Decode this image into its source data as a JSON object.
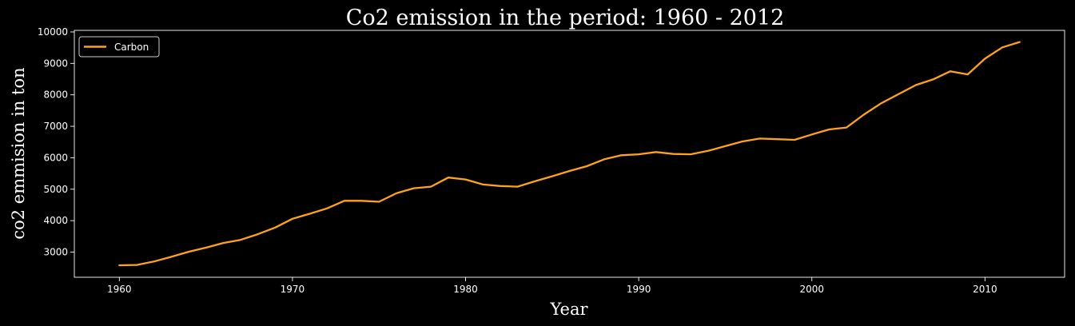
{
  "chart_data": {
    "type": "line",
    "title": "Co2 emission in the period: 1960 - 2012",
    "xlabel": "Year",
    "ylabel": "co2 emmision in ton",
    "xlim": [
      1957.4,
      2014.6
    ],
    "ylim": [
      2200,
      10050
    ],
    "x_ticks": [
      1960,
      1970,
      1980,
      1990,
      2000,
      2010
    ],
    "y_ticks": [
      3000,
      4000,
      5000,
      6000,
      7000,
      8000,
      9000,
      10000
    ],
    "grid": false,
    "legend_position": "top-left",
    "background": "#000000",
    "series": [
      {
        "name": "Carbon",
        "color": "#ffa319",
        "x": [
          1960,
          1961,
          1962,
          1963,
          1964,
          1965,
          1966,
          1967,
          1968,
          1969,
          1970,
          1971,
          1972,
          1973,
          1974,
          1975,
          1976,
          1977,
          1978,
          1979,
          1980,
          1981,
          1982,
          1983,
          1984,
          1985,
          1986,
          1987,
          1988,
          1989,
          1990,
          1991,
          1992,
          1993,
          1994,
          1995,
          1996,
          1997,
          1998,
          1999,
          2000,
          2001,
          2002,
          2003,
          2004,
          2005,
          2006,
          2007,
          2008,
          2009,
          2010,
          2011,
          2012
        ],
        "values": [
          2580,
          2590,
          2700,
          2850,
          3010,
          3140,
          3290,
          3390,
          3570,
          3780,
          4060,
          4220,
          4390,
          4630,
          4630,
          4600,
          4870,
          5030,
          5080,
          5370,
          5310,
          5150,
          5100,
          5080,
          5250,
          5410,
          5580,
          5730,
          5950,
          6080,
          6110,
          6180,
          6120,
          6110,
          6220,
          6370,
          6520,
          6610,
          6590,
          6570,
          6740,
          6900,
          6960,
          7370,
          7730,
          8020,
          8310,
          8490,
          8750,
          8650,
          9150,
          9510,
          9680
        ]
      }
    ]
  }
}
